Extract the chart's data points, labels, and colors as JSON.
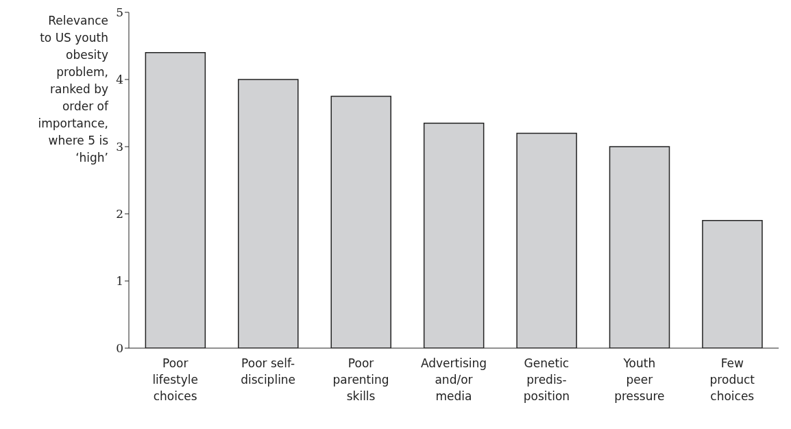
{
  "chart_data": {
    "type": "bar",
    "ylabel": "Relevance to US youth obesity problem, ranked by order of importance, where 5 is ‘high’",
    "categories": [
      "Poor lifestyle choices",
      "Poor self-discipline",
      "Poor parenting skills",
      "Advertising and/or media",
      "Genetic predis-position",
      "Youth peer pressure",
      "Few product choices"
    ],
    "values": [
      4.4,
      4.0,
      3.75,
      3.35,
      3.2,
      3.0,
      1.9
    ],
    "color": "#d1d2d4",
    "ylim": [
      0,
      5
    ],
    "yticks": [
      0,
      1,
      2,
      3,
      4,
      5
    ],
    "grid": false,
    "legend": false
  }
}
